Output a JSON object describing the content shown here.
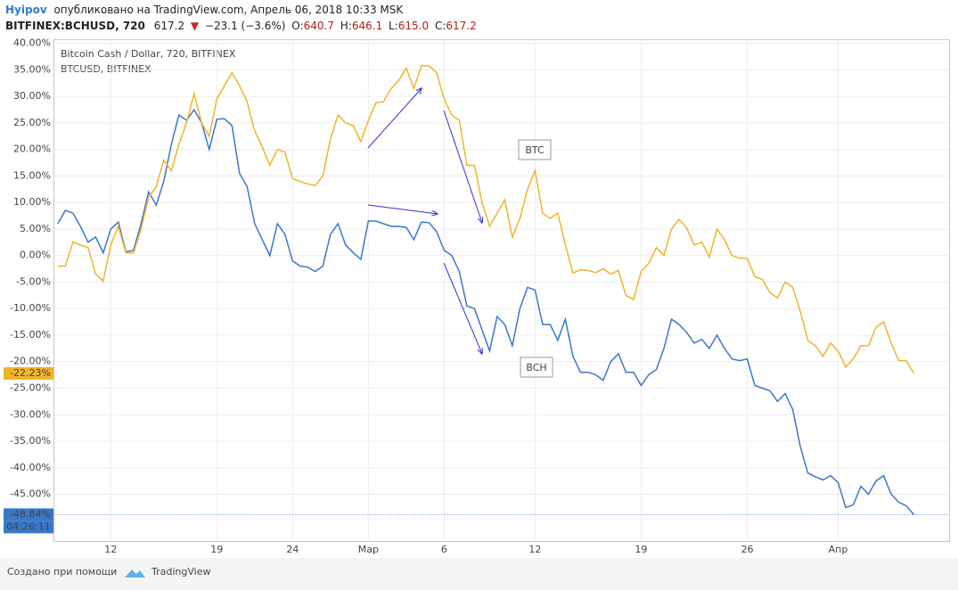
{
  "header": {
    "author": "Hyipov",
    "published": "опубликовано на TradingView.com, Апрель 06, 2018 10:33 MSK"
  },
  "quote": {
    "symbol": "BITFINEX:BCHUSD, 720",
    "last": "617.2",
    "arrow": "▼",
    "change": "−23.1 (−3.6%)",
    "ohlc": [
      {
        "key": "O:",
        "value": "640.7"
      },
      {
        "key": "H:",
        "value": "646.1"
      },
      {
        "key": "L:",
        "value": "615.0"
      },
      {
        "key": "C:",
        "value": "617.2"
      }
    ]
  },
  "chart_data": {
    "type": "line",
    "legend_text": [
      "Bitcoin Cash / Dollar, 720, BITFINEX",
      "BTCUSD, BITFINEX"
    ],
    "xlim": [
      -0.5,
      117.7
    ],
    "xticks": [
      {
        "value": 7,
        "label": "12"
      },
      {
        "value": 21,
        "label": "19"
      },
      {
        "value": 31,
        "label": "24"
      },
      {
        "value": 41,
        "label": "Мар"
      },
      {
        "value": 51,
        "label": "6"
      },
      {
        "value": 63,
        "label": "12"
      },
      {
        "value": 77,
        "label": "19"
      },
      {
        "value": 91,
        "label": "26"
      },
      {
        "value": 103,
        "label": "Апр"
      }
    ],
    "ylim": [
      -53.9,
      40.7
    ],
    "yticks": [
      {
        "value": 40,
        "label": "40.00%"
      },
      {
        "value": 35,
        "label": "35.00%"
      },
      {
        "value": 30,
        "label": "30.00%"
      },
      {
        "value": 25,
        "label": "25.00%"
      },
      {
        "value": 20,
        "label": "20.00%"
      },
      {
        "value": 15,
        "label": "15.00%"
      },
      {
        "value": 10,
        "label": "10.00%"
      },
      {
        "value": 5,
        "label": "5.00%"
      },
      {
        "value": 0,
        "label": "0.00%"
      },
      {
        "value": -5,
        "label": "-5.00%"
      },
      {
        "value": -10,
        "label": "-10.00%"
      },
      {
        "value": -15,
        "label": "-15.00%"
      },
      {
        "value": -20,
        "label": "-20.00%"
      },
      {
        "value": -25,
        "label": "-25.00%"
      },
      {
        "value": -30,
        "label": "-30.00%"
      },
      {
        "value": -35,
        "label": "-35.00%"
      },
      {
        "value": -40,
        "label": "-40.00%"
      },
      {
        "value": -45,
        "label": "-45.00%"
      }
    ],
    "grid": true,
    "countdown": "04:26:11",
    "series": [
      {
        "name": "BCH",
        "color": "#3a78c9",
        "last_value_label": "-48.84%",
        "values": [
          6,
          8.5,
          8,
          5.5,
          2.5,
          3.5,
          0.5,
          5,
          6.3,
          0.7,
          1,
          6,
          12,
          9.5,
          14,
          21,
          26.5,
          25.5,
          27.5,
          25,
          20,
          25.7,
          25.8,
          24.5,
          15.5,
          13,
          6,
          3,
          0,
          6,
          4,
          -1,
          -2,
          -2.2,
          -3,
          -2,
          4,
          6,
          2,
          0.5,
          -0.7,
          6.5,
          6.5,
          6,
          5.5,
          5.5,
          5.3,
          3,
          6.3,
          6.2,
          4.5,
          1,
          0,
          -3,
          -9.5,
          -10,
          -14,
          -18,
          -11.5,
          -13,
          -17,
          -10,
          -6,
          -6.5,
          -13,
          -13,
          -16,
          -12,
          -19,
          -22,
          -22,
          -22.5,
          -23.5,
          -20,
          -18.5,
          -22,
          -22,
          -24.5,
          -22.5,
          -21.5,
          -17.5,
          -12,
          -13,
          -14.5,
          -16.5,
          -15.8,
          -17.5,
          -15,
          -17.5,
          -19.5,
          -19.8,
          -19.5,
          -24.5,
          -25,
          -25.5,
          -27.5,
          -26,
          -29,
          -36,
          -41,
          -41.7,
          -42.3,
          -41.5,
          -42.8,
          -47.5,
          -47,
          -43.5,
          -45,
          -42.5,
          -41.5,
          -45,
          -46.5,
          -47.2,
          -48.84
        ]
      },
      {
        "name": "BTC",
        "color": "#f0b429",
        "last_value_label": "-22.23%",
        "values": [
          -2,
          -2,
          2.5,
          2,
          1.5,
          -3.5,
          -4.8,
          2,
          5.5,
          0.5,
          0.5,
          5,
          11,
          13,
          18,
          16,
          21,
          25,
          30.5,
          25,
          22.5,
          29.5,
          32,
          34.5,
          32,
          29,
          23.5,
          20.5,
          17,
          20,
          19.5,
          14.5,
          14,
          13.5,
          13.2,
          15,
          22,
          26.5,
          25,
          24.5,
          21.5,
          25.5,
          28.8,
          29,
          31.5,
          33,
          35.3,
          31.5,
          35.8,
          35.8,
          34.5,
          29.5,
          26.5,
          25.5,
          17,
          17,
          10,
          5.5,
          8,
          10.5,
          3.5,
          7,
          12.5,
          16,
          8,
          7,
          8,
          2,
          -3.3,
          -2.7,
          -2.8,
          -3.2,
          -2.5,
          -3.5,
          -2.8,
          -7.5,
          -8.3,
          -3,
          -1.5,
          1.5,
          0,
          5,
          6.8,
          5.2,
          2,
          2.5,
          -0.3,
          5,
          3,
          0,
          -0.5,
          -0.5,
          -4,
          -4.5,
          -7,
          -8,
          -5,
          -6,
          -10.5,
          -16,
          -17,
          -19,
          -16.5,
          -18,
          -21,
          -19.5,
          -17,
          -17,
          -13.5,
          -12.5,
          -16.5,
          -19.8,
          -19.8,
          -22.23
        ]
      }
    ]
  },
  "footer": {
    "made_with": "Создано при помощи",
    "brand": "TradingView"
  }
}
